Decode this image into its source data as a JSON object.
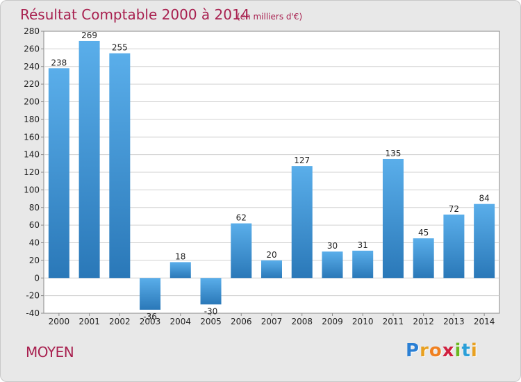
{
  "chart_data": {
    "type": "bar",
    "title": "Résultat Comptable 2000 à 2014",
    "subtitle": "(en milliers d'€)",
    "categories": [
      "2000",
      "2001",
      "2002",
      "2003",
      "2004",
      "2005",
      "2006",
      "2007",
      "2008",
      "2009",
      "2010",
      "2011",
      "2012",
      "2013",
      "2014"
    ],
    "values": [
      238,
      269,
      255,
      -36,
      18,
      -30,
      62,
      20,
      127,
      30,
      31,
      135,
      45,
      72,
      84
    ],
    "yticks": [
      "280",
      "260",
      "240",
      "220",
      "200",
      "180",
      "160",
      "140",
      "120",
      "100",
      "80",
      "60",
      "40",
      "20",
      "0",
      "-20",
      "-40"
    ],
    "ylim": [
      -40,
      280
    ],
    "xlabel": "",
    "ylabel": "",
    "grid": true,
    "bar_color_light": "#5aaeea",
    "bar_color_dark": "#2a78b8"
  },
  "commune": "MOYEN",
  "logo": {
    "letters": [
      "P",
      "r",
      "o",
      "x",
      "i",
      "t",
      "i"
    ],
    "colors": [
      "#2a7fd4",
      "#e8a020",
      "#f08020",
      "#d02040",
      "#6bb820",
      "#2a9fd8",
      "#e8a020"
    ]
  },
  "colors": {
    "title": "#a8204f",
    "background": "#e8e8e8",
    "plot": "#ffffff",
    "grid": "#d0d0d0"
  }
}
